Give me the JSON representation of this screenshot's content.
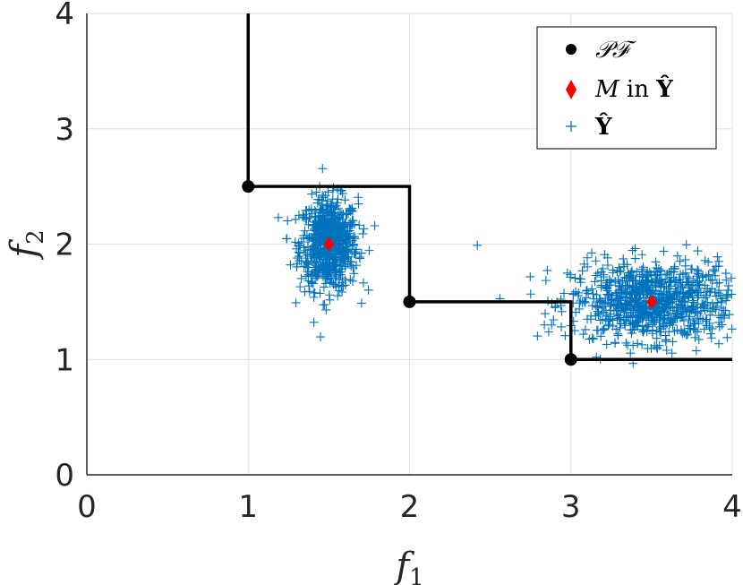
{
  "chart_data": {
    "type": "scatter",
    "xlabel": "f1",
    "ylabel": "f2",
    "xlim": [
      0,
      4
    ],
    "ylim": [
      0,
      4
    ],
    "x_ticks": [
      "0",
      "1",
      "2",
      "3",
      "4"
    ],
    "y_ticks": [
      "0",
      "1",
      "2",
      "3",
      "4"
    ],
    "grid": true,
    "legend_position": "top-right",
    "pareto_front_points": [
      {
        "x": 1,
        "y": 2.5
      },
      {
        "x": 2,
        "y": 1.5
      },
      {
        "x": 3,
        "y": 1
      }
    ],
    "step_line": [
      {
        "x": 1,
        "y": 4
      },
      {
        "x": 1,
        "y": 2.5
      },
      {
        "x": 2,
        "y": 2.5
      },
      {
        "x": 2,
        "y": 1.5
      },
      {
        "x": 3,
        "y": 1.5
      },
      {
        "x": 3,
        "y": 1
      },
      {
        "x": 4,
        "y": 1
      }
    ],
    "cluster_means": [
      {
        "x": 1.5,
        "y": 2.0
      },
      {
        "x": 3.5,
        "y": 1.5
      }
    ],
    "samples_description": {
      "cluster_1": {
        "center_x": 1.5,
        "center_y": 2.0,
        "sd_x": 0.09,
        "sd_y": 0.2,
        "count": 700
      },
      "cluster_2": {
        "center_x": 3.5,
        "center_y": 1.5,
        "sd_x": 0.25,
        "sd_y": 0.17,
        "count": 900
      },
      "outliers": [
        {
          "x": 2.42,
          "y": 1.99
        }
      ]
    },
    "legend": [
      {
        "label": "PF"
      },
      {
        "label": "M in Ŷ"
      },
      {
        "label": "Ŷ"
      }
    ],
    "colors": {
      "pareto": "#000000",
      "mean": "#ff0000",
      "samples": "#0072bd",
      "grid": "#e0e0e0"
    }
  }
}
